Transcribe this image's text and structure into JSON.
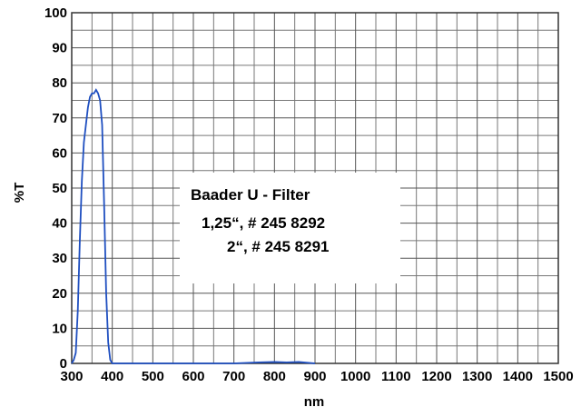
{
  "chart_data": {
    "type": "line",
    "x_label": "nm",
    "y_label": "%T",
    "x": [
      300,
      305,
      310,
      315,
      320,
      325,
      330,
      335,
      340,
      345,
      350,
      355,
      360,
      365,
      370,
      375,
      380,
      385,
      390,
      395,
      400,
      700,
      760,
      800,
      830,
      860,
      900
    ],
    "series": [
      {
        "name": "Baader U - Filter",
        "color": "#1f4fc0",
        "values": [
          0,
          1,
          3,
          15,
          35,
          52,
          63,
          68,
          73,
          76,
          77,
          77,
          78,
          77,
          75,
          68,
          45,
          20,
          6,
          1,
          0,
          0,
          0.3,
          0.4,
          0.3,
          0.4,
          0
        ]
      }
    ],
    "xlim": [
      300,
      1500
    ],
    "ylim": [
      0,
      100
    ],
    "xticks": [
      300,
      400,
      500,
      600,
      700,
      800,
      900,
      1000,
      1100,
      1200,
      1300,
      1400,
      1500
    ],
    "yticks": [
      0,
      10,
      20,
      30,
      40,
      50,
      60,
      70,
      80,
      90,
      100
    ],
    "x_minor_grid": [
      350,
      450,
      550,
      650,
      750,
      850,
      950,
      1050,
      1150,
      1250,
      1350,
      1450
    ],
    "y_minor_grid": [
      5,
      15,
      25,
      35,
      45,
      55,
      65,
      75,
      85,
      95
    ],
    "grid": true,
    "annotation": {
      "title": "Baader U - Filter",
      "lines": [
        "1,25“, # 245 8292",
        "2“, # 245 8291"
      ]
    }
  }
}
